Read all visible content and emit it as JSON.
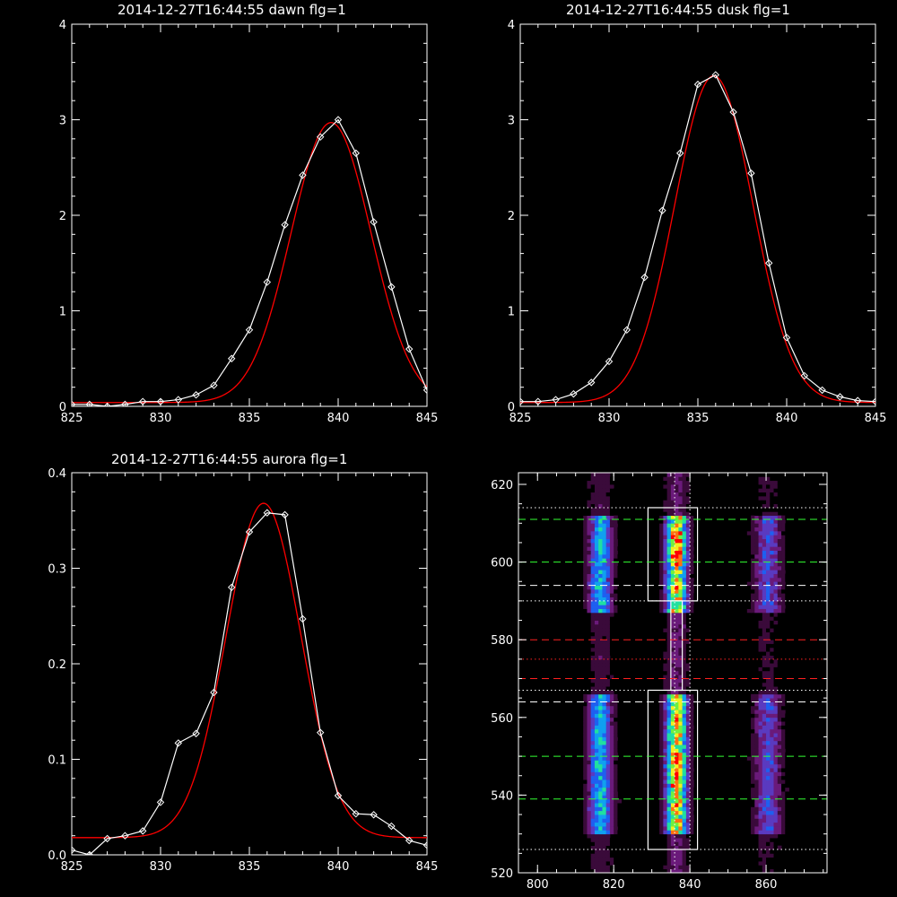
{
  "chart_data": [
    {
      "type": "line",
      "title": "2014-12-27T16:44:55 dawn flg=1",
      "xlim": [
        825,
        845
      ],
      "ylim": [
        0,
        4
      ],
      "xticks": [
        825,
        830,
        835,
        840,
        845
      ],
      "yticks": [
        0,
        1,
        2,
        3,
        4
      ],
      "series": [
        {
          "color": "#ffffff",
          "marker": "diamond",
          "x": [
            825,
            826,
            827,
            828,
            829,
            830,
            831,
            832,
            833,
            834,
            835,
            836,
            837,
            838,
            839,
            840,
            841,
            842,
            843,
            844,
            845
          ],
          "y": [
            0.02,
            0.02,
            0.0,
            0.02,
            0.05,
            0.05,
            0.07,
            0.12,
            0.22,
            0.5,
            0.8,
            1.3,
            1.9,
            2.42,
            2.82,
            3.0,
            2.65,
            1.93,
            1.25,
            0.6,
            0.17
          ]
        },
        {
          "color": "#ff0000",
          "baseline": 0.04,
          "amp": 2.93,
          "center": 839.6,
          "sigma": 2.25
        }
      ]
    },
    {
      "type": "line",
      "title": "2014-12-27T16:44:55 dusk flg=1",
      "xlim": [
        825,
        845
      ],
      "ylim": [
        0,
        4
      ],
      "xticks": [
        825,
        830,
        835,
        840,
        845
      ],
      "yticks": [
        0,
        1,
        2,
        3,
        4
      ],
      "series": [
        {
          "color": "#ffffff",
          "marker": "diamond",
          "x": [
            825,
            826,
            827,
            828,
            829,
            830,
            831,
            832,
            833,
            834,
            835,
            836,
            837,
            838,
            839,
            840,
            841,
            842,
            843,
            844,
            845
          ],
          "y": [
            0.05,
            0.05,
            0.07,
            0.13,
            0.25,
            0.47,
            0.8,
            1.35,
            2.05,
            2.65,
            3.37,
            3.47,
            3.08,
            2.44,
            1.5,
            0.72,
            0.32,
            0.17,
            0.1,
            0.06,
            0.05
          ]
        },
        {
          "color": "#ff0000",
          "baseline": 0.04,
          "amp": 3.42,
          "center": 835.9,
          "sigma": 2.2
        }
      ]
    },
    {
      "type": "line",
      "title": "2014-12-27T16:44:55 aurora flg=1",
      "xlim": [
        825,
        845
      ],
      "ylim": [
        0,
        0.4
      ],
      "xticks": [
        825,
        830,
        835,
        840,
        845
      ],
      "yticks": [
        0,
        0.1,
        0.2,
        0.3,
        0.4
      ],
      "series": [
        {
          "color": "#ffffff",
          "marker": "diamond",
          "x": [
            825,
            826,
            827,
            828,
            829,
            830,
            831,
            832,
            833,
            834,
            835,
            836,
            837,
            838,
            839,
            840,
            841,
            842,
            843,
            844,
            845
          ],
          "y": [
            0.005,
            0.0,
            0.017,
            0.02,
            0.025,
            0.055,
            0.117,
            0.127,
            0.17,
            0.28,
            0.338,
            0.358,
            0.356,
            0.247,
            0.128,
            0.062,
            0.043,
            0.042,
            0.03,
            0.015,
            0.01
          ]
        },
        {
          "color": "#ff0000",
          "baseline": 0.018,
          "amp": 0.35,
          "center": 835.8,
          "sigma": 2.1
        }
      ]
    },
    {
      "type": "heatmap",
      "xlim": [
        795,
        876
      ],
      "ylim": [
        520,
        623
      ],
      "xticks": [
        800,
        820,
        840,
        860
      ],
      "yticks": [
        520,
        540,
        560,
        580,
        600,
        620
      ],
      "colormap": [
        "#000000",
        "#3a0a3a",
        "#6a1a7a",
        "#5a3ac0",
        "#1f5ff0",
        "#10a0f0",
        "#20e0a0",
        "#70f040",
        "#f0f020",
        "#ff7010",
        "#ff0000",
        "#ffffff"
      ],
      "bright_columns_x": [
        816,
        836,
        860
      ],
      "regions": [
        {
          "x": [
            829,
            842
          ],
          "y": [
            590,
            614
          ]
        },
        {
          "x": [
            829,
            842
          ],
          "y": [
            526,
            567
          ]
        },
        {
          "x": [
            835,
            838
          ],
          "y": [
            567,
            590
          ]
        }
      ],
      "vlines": [
        {
          "x": 836,
          "color": "#ffffff",
          "dash": "dotted"
        },
        {
          "x": 840,
          "color": "#ffffff",
          "dash": "dotted"
        }
      ],
      "hlines": [
        {
          "y": 614,
          "color": "#ffffff",
          "dash": "dotted"
        },
        {
          "y": 611,
          "color": "#33ff33",
          "dash": "dashed"
        },
        {
          "y": 600,
          "color": "#33ff33",
          "dash": "dashed"
        },
        {
          "y": 594,
          "color": "#ffffff",
          "dash": "dashed"
        },
        {
          "y": 590,
          "color": "#ffffff",
          "dash": "dotted"
        },
        {
          "y": 580,
          "color": "#ff2020",
          "dash": "dashed"
        },
        {
          "y": 575,
          "color": "#ff2020",
          "dash": "dotted"
        },
        {
          "y": 570,
          "color": "#ff2020",
          "dash": "dashed"
        },
        {
          "y": 567,
          "color": "#ffffff",
          "dash": "dotted"
        },
        {
          "y": 564,
          "color": "#ffffff",
          "dash": "dashed"
        },
        {
          "y": 550,
          "color": "#33ff33",
          "dash": "dashed"
        },
        {
          "y": 539,
          "color": "#33ff33",
          "dash": "dashed"
        },
        {
          "y": 526,
          "color": "#ffffff",
          "dash": "dotted"
        }
      ]
    }
  ]
}
